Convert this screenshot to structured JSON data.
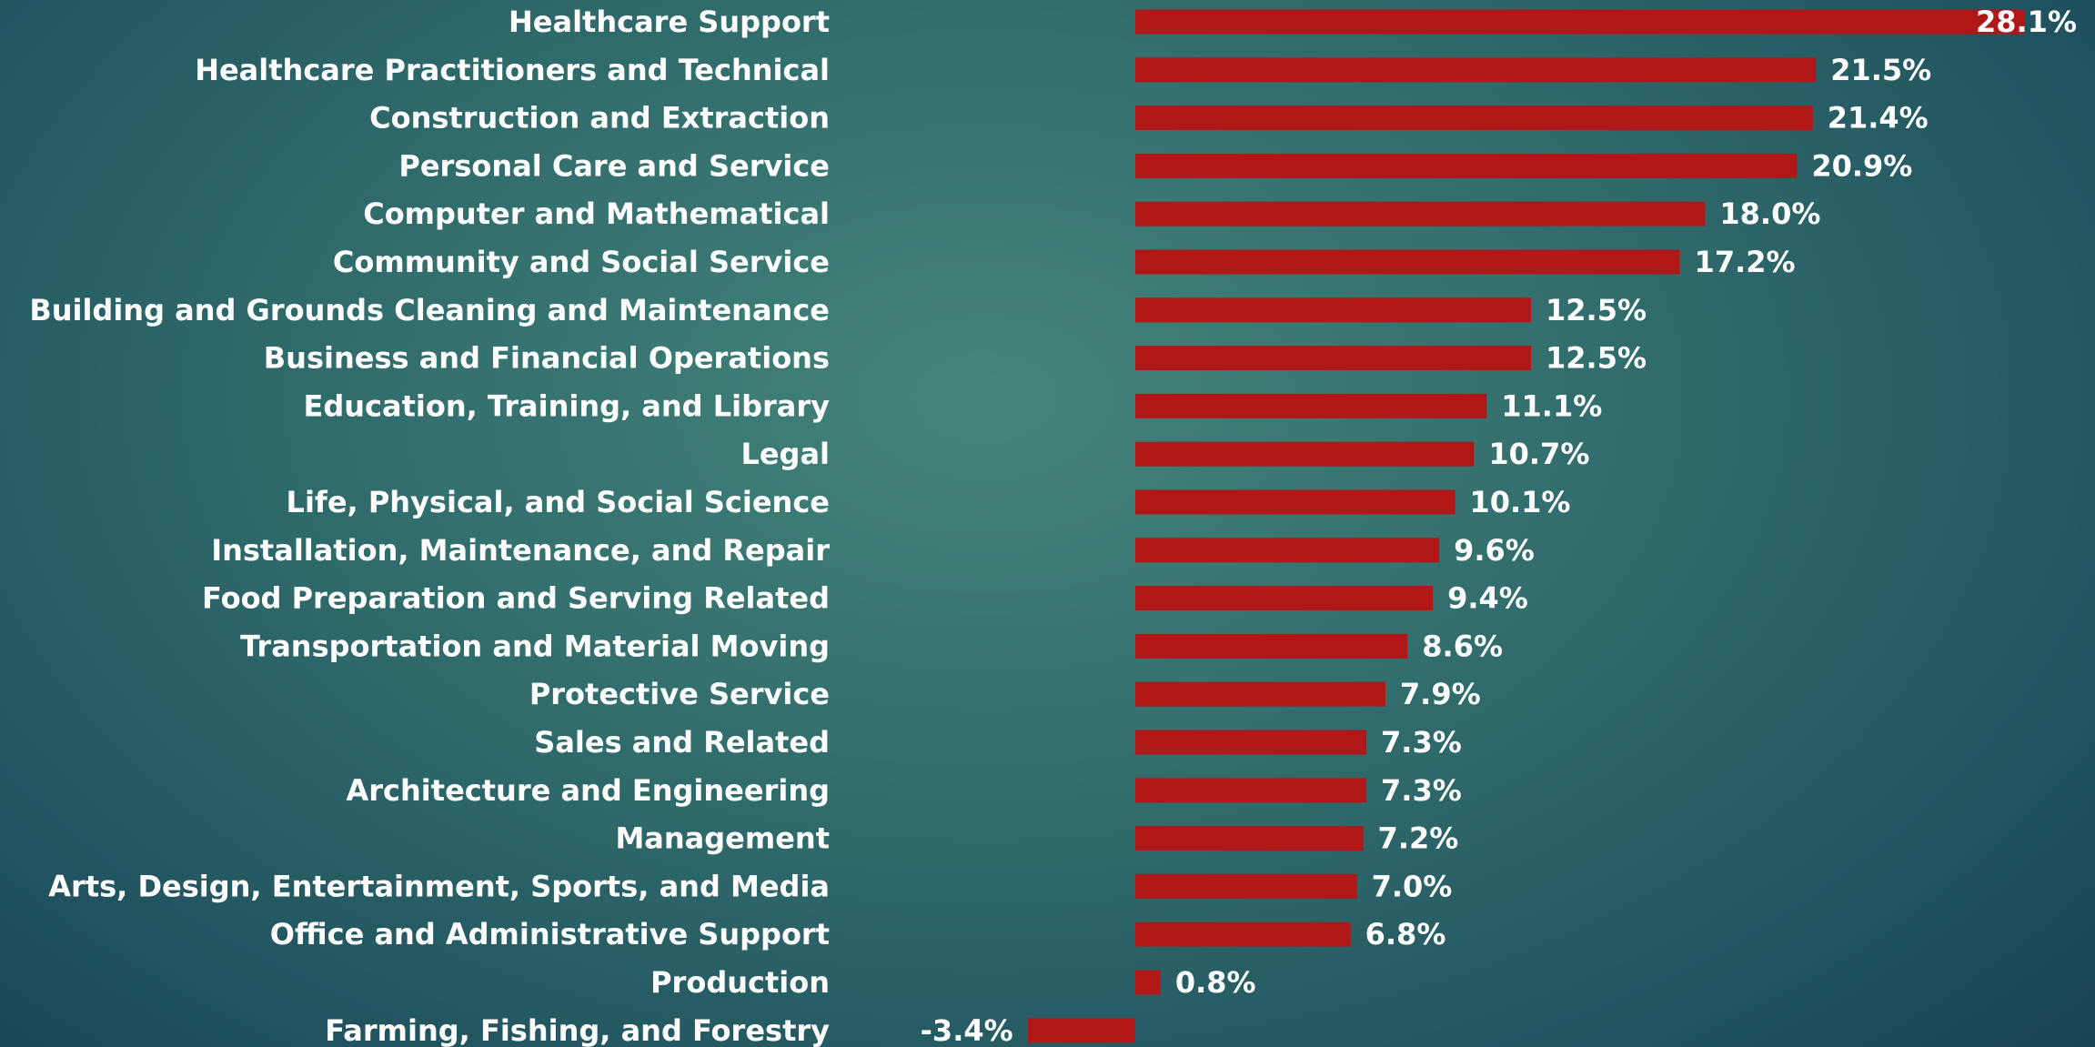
{
  "chart_data": {
    "type": "barh",
    "categories": [
      "Healthcare Support",
      "Healthcare Practitioners and Technical",
      "Construction and Extraction",
      "Personal Care and Service",
      "Computer and Mathematical",
      "Community and Social Service",
      "Building and Grounds Cleaning and Maintenance",
      "Business and Financial Operations",
      "Education, Training, and Library",
      "Legal",
      "Life, Physical, and Social Science",
      "Installation, Maintenance, and Repair",
      "Food Preparation and Serving Related",
      "Transportation and Material Moving",
      "Protective Service",
      "Sales and Related",
      "Architecture and Engineering",
      "Management",
      "Arts, Design, Entertainment, Sports, and Media",
      "Office and Administrative Support",
      "Production",
      "Farming, Fishing, and Forestry"
    ],
    "values": [
      28.1,
      21.5,
      21.4,
      20.9,
      18.0,
      17.2,
      12.5,
      12.5,
      11.1,
      10.7,
      10.1,
      9.6,
      9.4,
      8.6,
      7.9,
      7.3,
      7.3,
      7.2,
      7.0,
      6.8,
      0.8,
      -3.4
    ],
    "value_labels": [
      "28.1%",
      "21.5%",
      "21.4%",
      "20.9%",
      "18.0%",
      "17.2%",
      "12.5%",
      "12.5%",
      "11.1%",
      "10.7%",
      "10.1%",
      "9.6%",
      "9.4%",
      "8.6%",
      "7.9%",
      "7.3%",
      "7.3%",
      "7.2%",
      "7.0%",
      "6.8%",
      "0.8%",
      "-3.4%"
    ],
    "color": "#b01818"
  }
}
